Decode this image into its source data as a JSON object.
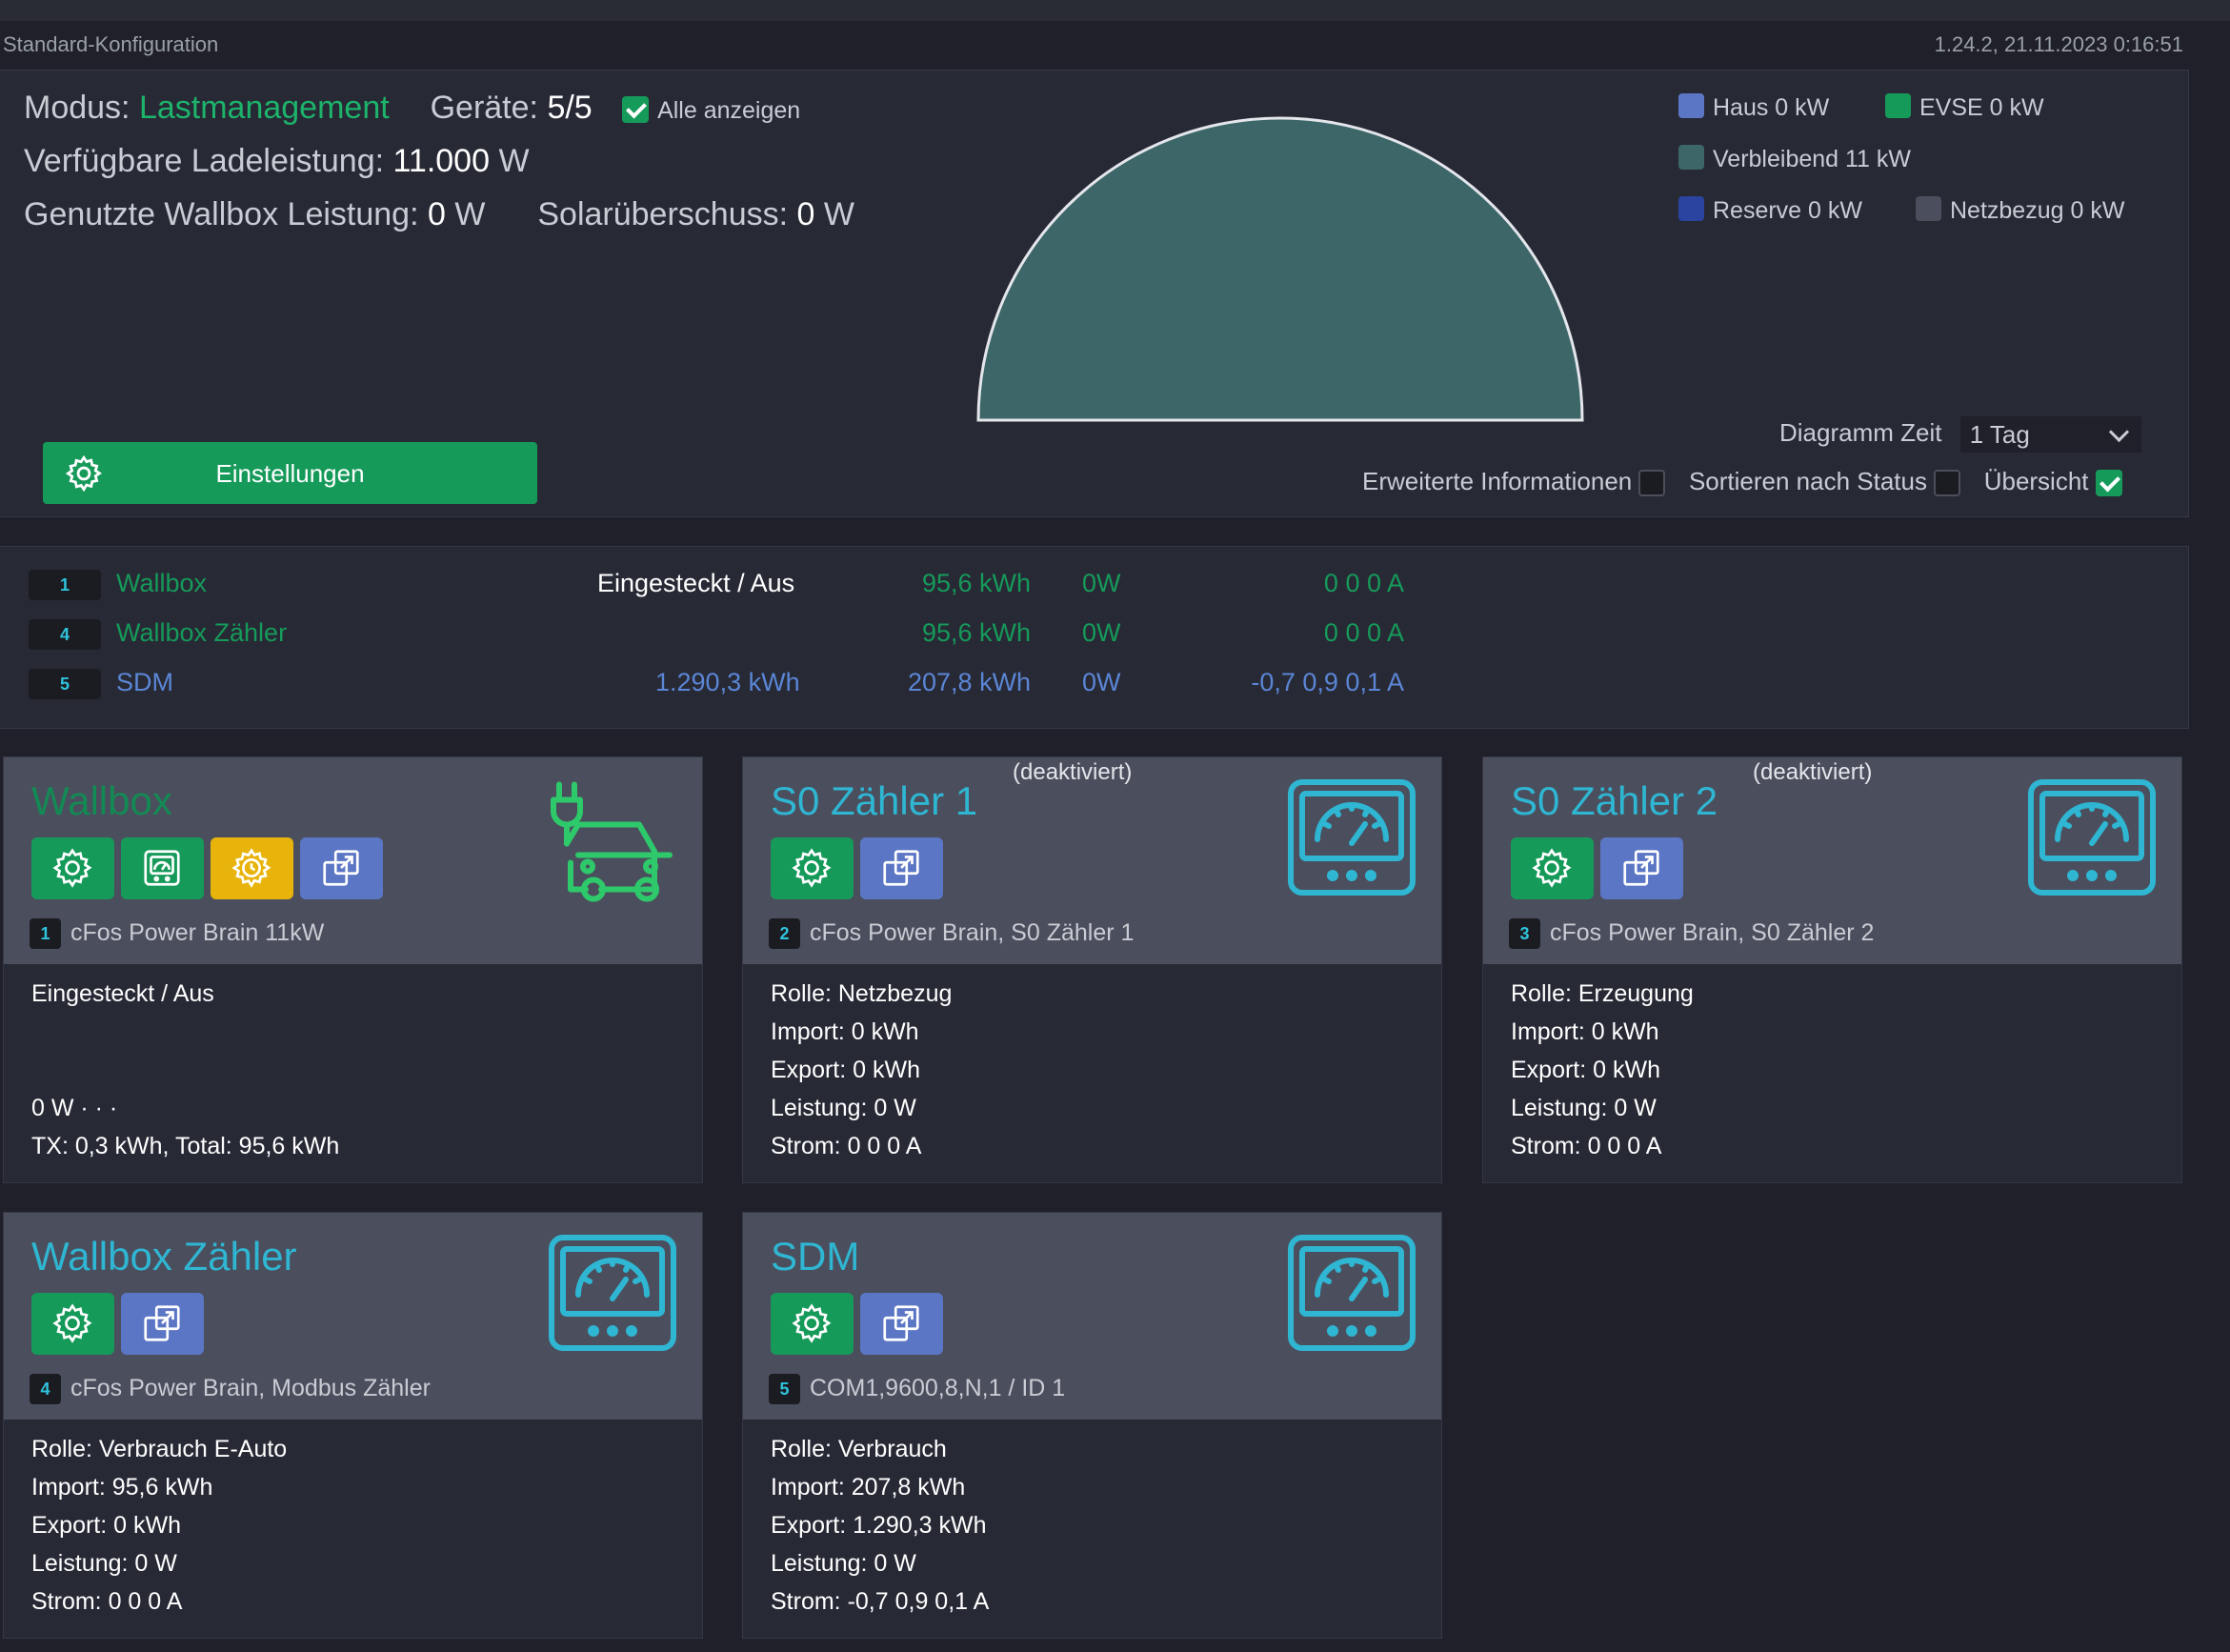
{
  "header": {
    "config_name": "Standard-Konfiguration",
    "version": "1.24.2, 21.11.2023 0:16:51"
  },
  "summary": {
    "modus_label": "Modus:",
    "modus_value": "Lastmanagement",
    "geraete_label": "Geräte:",
    "geraete_value": "5/5",
    "alle_anzeigen_label": "Alle anzeigen",
    "ladeleistung_label": "Verfügbare Ladeleistung:",
    "ladeleistung_value": "11.000",
    "ladeleistung_unit": "W",
    "wallbox_label": "Genutzte Wallbox Leistung:",
    "wallbox_value": "0",
    "wallbox_unit": "W",
    "solar_label": "Solarüberschuss:",
    "solar_value": "0",
    "solar_unit": "W",
    "settings_button": "Einstellungen",
    "legend": {
      "haus": "Haus 0 kW",
      "evse": "EVSE 0 kW",
      "verbleibend": "Verbleibend 11 kW",
      "reserve": "Reserve 0 kW",
      "netzbezug": "Netzbezug 0 kW"
    },
    "diagramm_zeit_label": "Diagramm Zeit",
    "diagramm_zeit_value": "1 Tag",
    "erweiterte_label": "Erweiterte Informationen",
    "sortieren_label": "Sortieren nach Status",
    "uebersicht_label": "Übersicht"
  },
  "device_list": [
    {
      "id": "1",
      "name": "Wallbox",
      "status": "Eingesteckt / Aus",
      "export": "",
      "import": "95,6 kWh",
      "power": "0W",
      "current": "0 0 0 A"
    },
    {
      "id": "4",
      "name": "Wallbox Zähler",
      "status": "",
      "export": "",
      "import": "95,6 kWh",
      "power": "0W",
      "current": "0 0 0 A"
    },
    {
      "id": "5",
      "name": "SDM",
      "status": "",
      "export": "1.290,3 kWh",
      "import": "207,8 kWh",
      "power": "0W",
      "current": "-0,7 0,9 0,1 A"
    }
  ],
  "cards": {
    "wallbox": {
      "title": "Wallbox",
      "id": "1",
      "model": "cFos Power Brain 11kW",
      "lines": [
        "Eingesteckt / Aus",
        "",
        "",
        "0 W · · ·",
        "TX: 0,3 kWh, Total: 95,6 kWh"
      ]
    },
    "s0_1": {
      "title": "S0 Zähler 1",
      "deactivated": "(deaktiviert)",
      "id": "2",
      "model": "cFos Power Brain, S0 Zähler 1",
      "lines": [
        "Rolle: Netzbezug",
        "Import: 0 kWh",
        "Export: 0 kWh",
        "Leistung: 0 W",
        "Strom: 0 0 0 A"
      ]
    },
    "s0_2": {
      "title": "S0 Zähler 2",
      "deactivated": "(deaktiviert)",
      "id": "3",
      "model": "cFos Power Brain, S0 Zähler 2",
      "lines": [
        "Rolle: Erzeugung",
        "Import: 0 kWh",
        "Export: 0 kWh",
        "Leistung: 0 W",
        "Strom: 0 0 0 A"
      ]
    },
    "wallbox_zaehler": {
      "title": "Wallbox Zähler",
      "id": "4",
      "model": "cFos Power Brain, Modbus Zähler",
      "lines": [
        "Rolle: Verbrauch E-Auto",
        "Import: 95,6 kWh",
        "Export: 0 kWh",
        "Leistung: 0 W",
        "Strom: 0 0 0 A"
      ]
    },
    "sdm": {
      "title": "SDM",
      "id": "5",
      "model": "COM1,9600,8,N,1 / ID 1",
      "lines": [
        "Rolle: Verbrauch",
        "Import: 207,8 kWh",
        "Export: 1.290,3 kWh",
        "Leistung: 0 W",
        "Strom: -0,7 0,9 0,1 A"
      ]
    }
  },
  "colors": {
    "accent_green": "#169a5a",
    "accent_blue": "#5b76c4",
    "accent_yellow": "#e8b40c",
    "cyan": "#2fb6d2",
    "legend_haus": "#5b76c4",
    "legend_evse": "#169a5a",
    "legend_verbleibend": "#3c6668",
    "legend_reserve": "#2a44a0",
    "legend_netzbezug": "#4b4e5d"
  },
  "icons": [
    "gear-icon",
    "meter-display-icon",
    "timer-gear-icon",
    "open-external-icon",
    "ev-car-plug-icon",
    "gauge-meter-icon"
  ]
}
